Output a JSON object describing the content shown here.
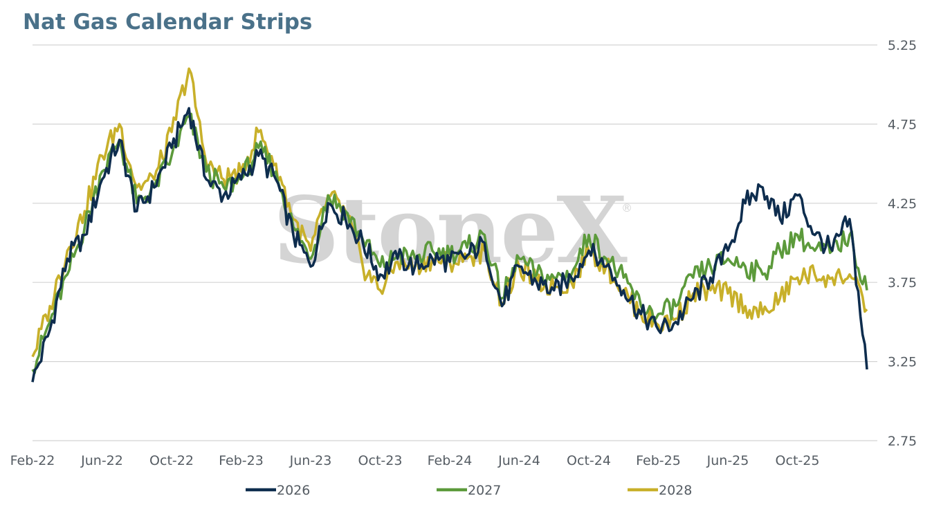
{
  "chart_data": {
    "type": "line",
    "title": "Nat Gas Calendar Strips",
    "watermark": "StoneX",
    "title_color": "#4a7189",
    "x_tick_labels": [
      "Feb-22",
      "Jun-22",
      "Oct-22",
      "Feb-23",
      "Jun-23",
      "Oct-23",
      "Feb-24",
      "Jun-24",
      "Oct-24",
      "Feb-25",
      "Jun-25",
      "Oct-25"
    ],
    "y_ticks": [
      "2.75",
      "3.25",
      "3.75",
      "4.25",
      "4.75",
      "5.25"
    ],
    "ylim": [
      2.75,
      5.25
    ],
    "grid": true,
    "y_axis_side": "right",
    "legend_position": "bottom",
    "x_months": [
      0,
      1,
      2,
      3,
      4,
      5,
      6,
      7,
      8,
      9,
      10,
      11,
      12,
      13,
      14,
      15,
      16,
      17,
      18,
      19,
      20,
      21,
      22,
      23,
      24,
      25,
      26,
      27,
      28,
      29,
      30,
      31,
      32,
      33,
      34,
      35,
      36,
      37,
      38,
      39,
      40,
      41,
      42,
      43,
      44,
      45,
      46,
      47,
      48
    ],
    "x_month_note": "months since Feb-22",
    "series": [
      {
        "name": "2026",
        "color": "#0e2d4e",
        "values": [
          3.12,
          3.45,
          3.9,
          4.05,
          4.4,
          4.65,
          4.2,
          4.35,
          4.6,
          4.85,
          4.4,
          4.3,
          4.4,
          4.55,
          4.4,
          4.05,
          3.85,
          4.25,
          4.15,
          4.0,
          3.8,
          3.9,
          3.85,
          3.9,
          3.88,
          3.92,
          4.0,
          3.6,
          3.85,
          3.75,
          3.7,
          3.78,
          3.95,
          3.85,
          3.7,
          3.55,
          3.45,
          3.5,
          3.65,
          3.78,
          3.95,
          4.25,
          4.35,
          4.15,
          4.3,
          4.05,
          3.95,
          4.15,
          3.2
        ]
      },
      {
        "name": "2027",
        "color": "#5c9a3b",
        "values": [
          3.2,
          3.5,
          3.8,
          4.1,
          4.45,
          4.65,
          4.25,
          4.35,
          4.55,
          4.8,
          4.45,
          4.35,
          4.4,
          4.6,
          4.45,
          4.1,
          3.9,
          4.3,
          4.2,
          4.02,
          3.85,
          3.92,
          3.9,
          3.95,
          3.93,
          3.97,
          4.05,
          3.65,
          3.9,
          3.8,
          3.78,
          3.8,
          4.05,
          3.9,
          3.78,
          3.6,
          3.55,
          3.6,
          3.78,
          3.85,
          3.9,
          3.85,
          3.8,
          3.95,
          4.05,
          3.95,
          3.95,
          4.05,
          3.7
        ]
      },
      {
        "name": "2028",
        "color": "#c8b02a",
        "values": [
          3.28,
          3.6,
          3.95,
          4.2,
          4.55,
          4.75,
          4.35,
          4.4,
          4.7,
          5.1,
          4.5,
          4.4,
          4.45,
          4.7,
          4.5,
          4.15,
          3.95,
          4.3,
          4.2,
          3.85,
          3.7,
          3.88,
          3.85,
          3.9,
          3.88,
          3.9,
          3.95,
          3.62,
          3.85,
          3.75,
          3.72,
          3.75,
          3.95,
          3.85,
          3.7,
          3.55,
          3.48,
          3.52,
          3.68,
          3.7,
          3.68,
          3.6,
          3.55,
          3.65,
          3.78,
          3.8,
          3.78,
          3.8,
          3.58
        ]
      }
    ]
  }
}
